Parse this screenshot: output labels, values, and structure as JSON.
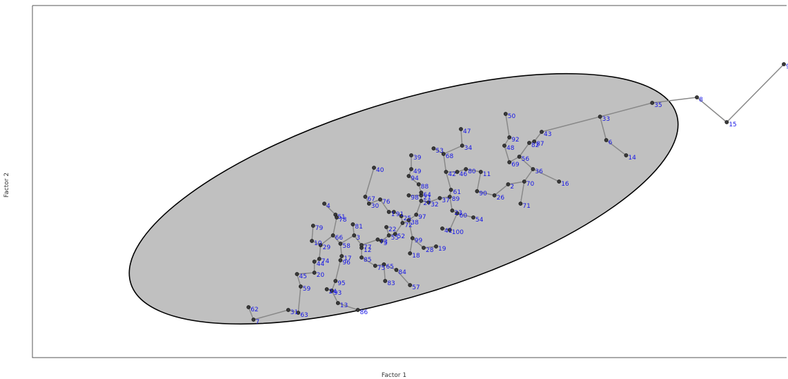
{
  "chart_data": {
    "type": "scatter",
    "title": "",
    "xlabel": "Factor 1",
    "ylabel": "Factor 2",
    "grid": false,
    "ellipse": {
      "fill": "#c0c0c0",
      "stroke": "#000000"
    },
    "colors": {
      "label": "#1515e6",
      "point": "#3a3a3a",
      "edge": "#888888"
    },
    "points": [
      {
        "id": "1",
        "x": 90,
        "y": 166
      },
      {
        "id": "2",
        "x": 186,
        "y": 186
      },
      {
        "id": "3",
        "x": 62,
        "y": 149
      },
      {
        "id": "4",
        "x": 38,
        "y": 172
      },
      {
        "id": "5",
        "x": 84,
        "y": 145
      },
      {
        "id": "6",
        "x": 265,
        "y": 218
      },
      {
        "id": "7",
        "x": -19,
        "y": 88
      },
      {
        "id": "8",
        "x": 338,
        "y": 249
      },
      {
        "id": "9",
        "x": 408,
        "y": 273
      },
      {
        "id": "10",
        "x": 28,
        "y": 145
      },
      {
        "id": "11",
        "x": 164,
        "y": 195
      },
      {
        "id": "12",
        "x": 68,
        "y": 140
      },
      {
        "id": "13",
        "x": 49,
        "y": 100
      },
      {
        "id": "14",
        "x": 281,
        "y": 207
      },
      {
        "id": "15",
        "x": 362,
        "y": 231
      },
      {
        "id": "16",
        "x": 227,
        "y": 188
      },
      {
        "id": "17",
        "x": 52,
        "y": 134
      },
      {
        "id": "18",
        "x": 107,
        "y": 136
      },
      {
        "id": "19",
        "x": 128,
        "y": 141
      },
      {
        "id": "20",
        "x": 30,
        "y": 122
      },
      {
        "id": "21",
        "x": 116,
        "y": 178
      },
      {
        "id": "22",
        "x": 88,
        "y": 155
      },
      {
        "id": "23",
        "x": 141,
        "y": 167
      },
      {
        "id": "24",
        "x": 40,
        "y": 110
      },
      {
        "id": "25",
        "x": 100,
        "y": 163
      },
      {
        "id": "26",
        "x": 175,
        "y": 178
      },
      {
        "id": "27",
        "x": 116,
        "y": 174
      },
      {
        "id": "28",
        "x": 118,
        "y": 140
      },
      {
        "id": "29",
        "x": 35,
        "y": 142
      },
      {
        "id": "30",
        "x": 74,
        "y": 172
      },
      {
        "id": "31",
        "x": 9,
        "y": 95
      },
      {
        "id": "32",
        "x": 122,
        "y": 173
      },
      {
        "id": "33",
        "x": 260,
        "y": 235
      },
      {
        "id": "34",
        "x": 149,
        "y": 214
      },
      {
        "id": "35",
        "x": 302,
        "y": 245
      },
      {
        "id": "36",
        "x": 206,
        "y": 197
      },
      {
        "id": "37",
        "x": 131,
        "y": 176
      },
      {
        "id": "38",
        "x": 106,
        "y": 160
      },
      {
        "id": "39",
        "x": 108,
        "y": 207
      },
      {
        "id": "40",
        "x": 78,
        "y": 198
      },
      {
        "id": "41",
        "x": 133,
        "y": 154
      },
      {
        "id": "42",
        "x": 136,
        "y": 195
      },
      {
        "id": "43",
        "x": 213,
        "y": 224
      },
      {
        "id": "44",
        "x": 30,
        "y": 130
      },
      {
        "id": "45",
        "x": 16,
        "y": 121
      },
      {
        "id": "46",
        "x": 145,
        "y": 195
      },
      {
        "id": "47",
        "x": 148,
        "y": 226
      },
      {
        "id": "48",
        "x": 183,
        "y": 214
      },
      {
        "id": "49",
        "x": 108,
        "y": 197
      },
      {
        "id": "50",
        "x": 184,
        "y": 237
      },
      {
        "id": "51",
        "x": 47,
        "y": 164
      },
      {
        "id": "52",
        "x": 95,
        "y": 150
      },
      {
        "id": "53",
        "x": 126,
        "y": 212
      },
      {
        "id": "54",
        "x": 158,
        "y": 162
      },
      {
        "id": "55",
        "x": 90,
        "y": 149
      },
      {
        "id": "56",
        "x": 195,
        "y": 206
      },
      {
        "id": "57",
        "x": 107,
        "y": 113
      },
      {
        "id": "58",
        "x": 51,
        "y": 143
      },
      {
        "id": "59",
        "x": 19,
        "y": 112
      },
      {
        "id": "60",
        "x": 145,
        "y": 165
      },
      {
        "id": "61",
        "x": 140,
        "y": 182
      },
      {
        "id": "62",
        "x": -23,
        "y": 97
      },
      {
        "id": "63",
        "x": 17,
        "y": 93
      },
      {
        "id": "64",
        "x": 116,
        "y": 180
      },
      {
        "id": "65",
        "x": 86,
        "y": 128
      },
      {
        "id": "66",
        "x": 45,
        "y": 149
      },
      {
        "id": "67",
        "x": 71,
        "y": 177
      },
      {
        "id": "68",
        "x": 134,
        "y": 208
      },
      {
        "id": "69",
        "x": 187,
        "y": 202
      },
      {
        "id": "70",
        "x": 199,
        "y": 188
      },
      {
        "id": "71",
        "x": 196,
        "y": 172
      },
      {
        "id": "72",
        "x": 101,
        "y": 158
      },
      {
        "id": "73",
        "x": 81,
        "y": 146
      },
      {
        "id": "74",
        "x": 34,
        "y": 132
      },
      {
        "id": "75",
        "x": 79,
        "y": 127
      },
      {
        "id": "76",
        "x": 83,
        "y": 175
      },
      {
        "id": "77",
        "x": 68,
        "y": 142
      },
      {
        "id": "78",
        "x": 48,
        "y": 162
      },
      {
        "id": "79",
        "x": 29,
        "y": 156
      },
      {
        "id": "80",
        "x": 152,
        "y": 197
      },
      {
        "id": "81",
        "x": 61,
        "y": 157
      },
      {
        "id": "82",
        "x": 203,
        "y": 216
      },
      {
        "id": "83",
        "x": 87,
        "y": 116
      },
      {
        "id": "84",
        "x": 96,
        "y": 124
      },
      {
        "id": "85",
        "x": 68,
        "y": 133
      },
      {
        "id": "86",
        "x": 65,
        "y": 95
      },
      {
        "id": "87",
        "x": 207,
        "y": 217
      },
      {
        "id": "88",
        "x": 114,
        "y": 186
      },
      {
        "id": "89",
        "x": 139,
        "y": 177
      },
      {
        "id": "90",
        "x": 161,
        "y": 181
      },
      {
        "id": "91",
        "x": 94,
        "y": 166
      },
      {
        "id": "92",
        "x": 187,
        "y": 220
      },
      {
        "id": "93",
        "x": 44,
        "y": 109
      },
      {
        "id": "94",
        "x": 106,
        "y": 192
      },
      {
        "id": "95",
        "x": 47,
        "y": 116
      },
      {
        "id": "96",
        "x": 51,
        "y": 131
      },
      {
        "id": "97",
        "x": 112,
        "y": 164
      },
      {
        "id": "98",
        "x": 106,
        "y": 178
      },
      {
        "id": "99",
        "x": 109,
        "y": 147
      },
      {
        "id": "100",
        "x": 139,
        "y": 153
      }
    ]
  }
}
